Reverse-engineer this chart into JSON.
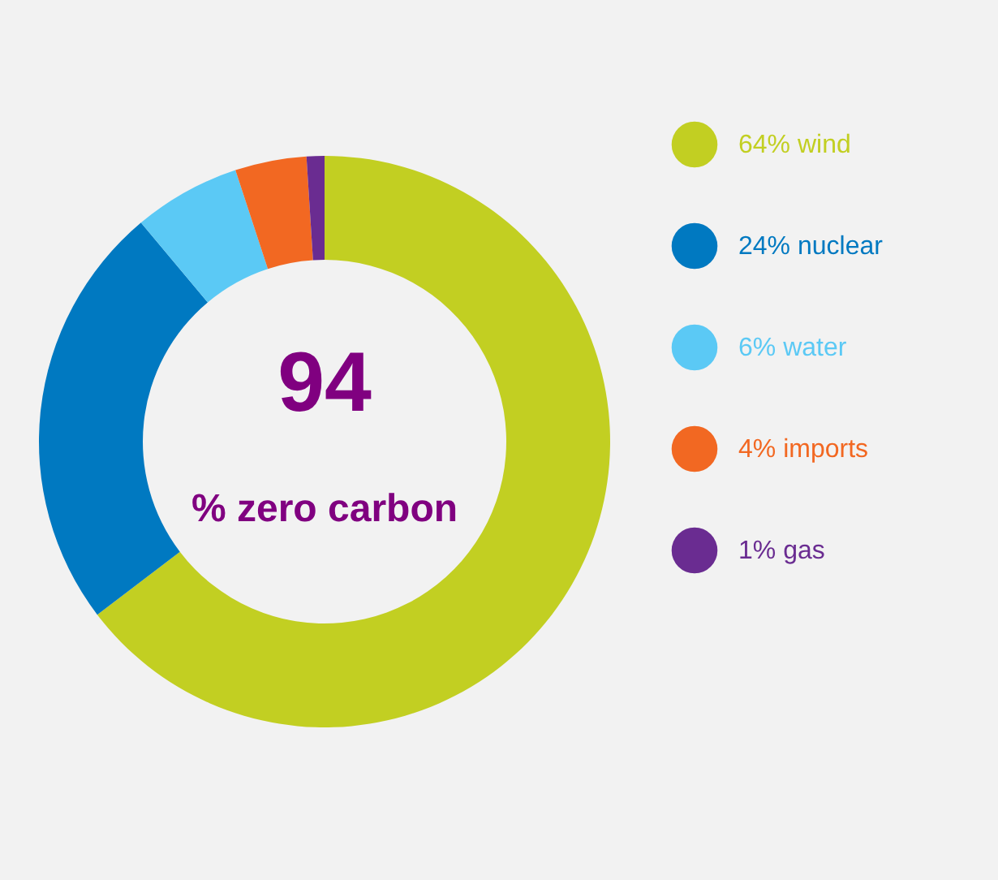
{
  "chart_data": {
    "type": "donut",
    "categories": [
      "64% wind",
      "24% nuclear",
      "6% water",
      "4% imports",
      "1% gas"
    ],
    "values": [
      64,
      24,
      6,
      4,
      1
    ],
    "colors": [
      "#c2cf22",
      "#0079c1",
      "#5bc9f5",
      "#f26822",
      "#6a2c91"
    ],
    "annotations": [
      "94",
      "% zero carbon"
    ],
    "legend": "right"
  }
}
